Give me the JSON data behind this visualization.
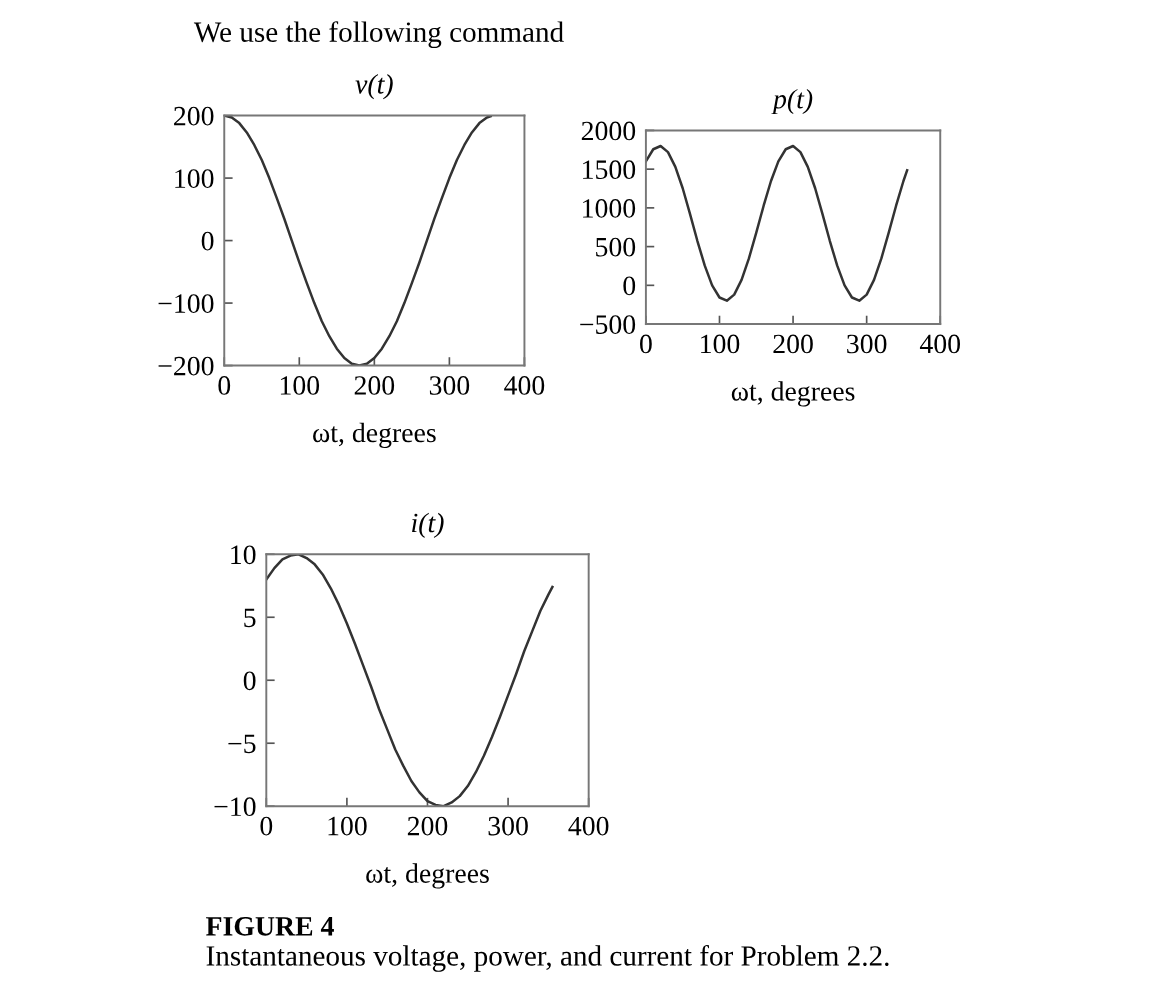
{
  "chart_data": [
    {
      "type": "line",
      "title": "v(t)",
      "xlabel": "ωt, degrees",
      "annotations": [
        "We use the following command"
      ],
      "x": [
        0,
        10,
        20,
        30,
        40,
        50,
        60,
        70,
        80,
        90,
        100,
        110,
        120,
        130,
        140,
        150,
        160,
        170,
        180,
        190,
        200,
        210,
        220,
        230,
        240,
        250,
        260,
        270,
        280,
        290,
        300,
        310,
        320,
        330,
        340,
        350,
        355
      ],
      "series": [
        {
          "color": "#333333",
          "values": [
            200,
            197,
            188,
            173,
            153,
            129,
            100,
            68,
            35,
            0,
            -35,
            -68,
            -100,
            -129,
            -153,
            -173,
            -188,
            -197,
            -200,
            -197,
            -188,
            -173,
            -153,
            -129,
            -100,
            -68,
            -35,
            0,
            35,
            68,
            100,
            129,
            153,
            173,
            188,
            197,
            199
          ]
        }
      ],
      "xlim": [
        0,
        400
      ],
      "xticks": [
        0,
        100,
        200,
        300,
        400
      ],
      "ylim": [
        -200,
        200
      ],
      "yticks": [
        {
          "value": -200,
          "label": "−200"
        },
        {
          "value": -100,
          "label": "−100"
        },
        0,
        100,
        200
      ],
      "grid": false,
      "legend": false
    },
    {
      "type": "line",
      "title": "p(t)",
      "xlabel": "ωt, degrees",
      "x": [
        0,
        10,
        20,
        30,
        40,
        50,
        60,
        70,
        80,
        90,
        100,
        110,
        120,
        130,
        140,
        150,
        160,
        170,
        180,
        190,
        200,
        210,
        220,
        230,
        240,
        250,
        260,
        270,
        280,
        290,
        300,
        310,
        320,
        330,
        340,
        350,
        355
      ],
      "series": [
        {
          "color": "#333333",
          "values": [
            1600,
            1757,
            1799,
            1720,
            1530,
            1253,
            920,
            572,
            254,
            0,
            -157,
            -198,
            -120,
            71,
            348,
            681,
            1028,
            1347,
            1600,
            1757,
            1799,
            1720,
            1530,
            1253,
            920,
            572,
            254,
            0,
            -157,
            -198,
            -120,
            71,
            348,
            681,
            1028,
            1347,
            1484
          ]
        }
      ],
      "xlim": [
        0,
        400
      ],
      "xticks": [
        0,
        100,
        200,
        300,
        400
      ],
      "ylim": [
        -500,
        2000
      ],
      "yticks": [
        {
          "value": -500,
          "label": "−500"
        },
        0,
        500,
        1000,
        1500,
        2000
      ],
      "grid": false,
      "legend": false
    },
    {
      "type": "line",
      "title": "i(t)",
      "xlabel": "ωt, degrees",
      "annotations": [
        "FIGURE 4",
        "Instantaneous voltage, power, and current for Problem 2.2."
      ],
      "x": [
        0,
        10,
        20,
        30,
        40,
        50,
        60,
        70,
        80,
        90,
        100,
        110,
        120,
        130,
        140,
        150,
        160,
        170,
        180,
        190,
        200,
        210,
        220,
        230,
        240,
        250,
        260,
        270,
        280,
        290,
        300,
        310,
        320,
        330,
        340,
        350,
        355
      ],
      "series": [
        {
          "color": "#333333",
          "values": [
            8,
            8.9,
            9.6,
            9.9,
            10,
            9.7,
            9.2,
            8.4,
            7.3,
            6,
            4.5,
            2.9,
            1.2,
            -0.5,
            -2.3,
            -3.9,
            -5.5,
            -6.8,
            -8,
            -8.9,
            -9.6,
            -9.9,
            -10,
            -9.7,
            -9.2,
            -8.4,
            -7.3,
            -6,
            -4.5,
            -2.9,
            -1.2,
            0.5,
            2.3,
            3.9,
            5.5,
            6.8,
            7.4
          ]
        }
      ],
      "xlim": [
        0,
        400
      ],
      "xticks": [
        0,
        100,
        200,
        300,
        400
      ],
      "ylim": [
        -10,
        10
      ],
      "yticks": [
        {
          "value": -10,
          "label": "−10"
        },
        {
          "value": -5,
          "label": "−5"
        },
        0,
        5,
        10
      ],
      "grid": false,
      "legend": false
    }
  ]
}
